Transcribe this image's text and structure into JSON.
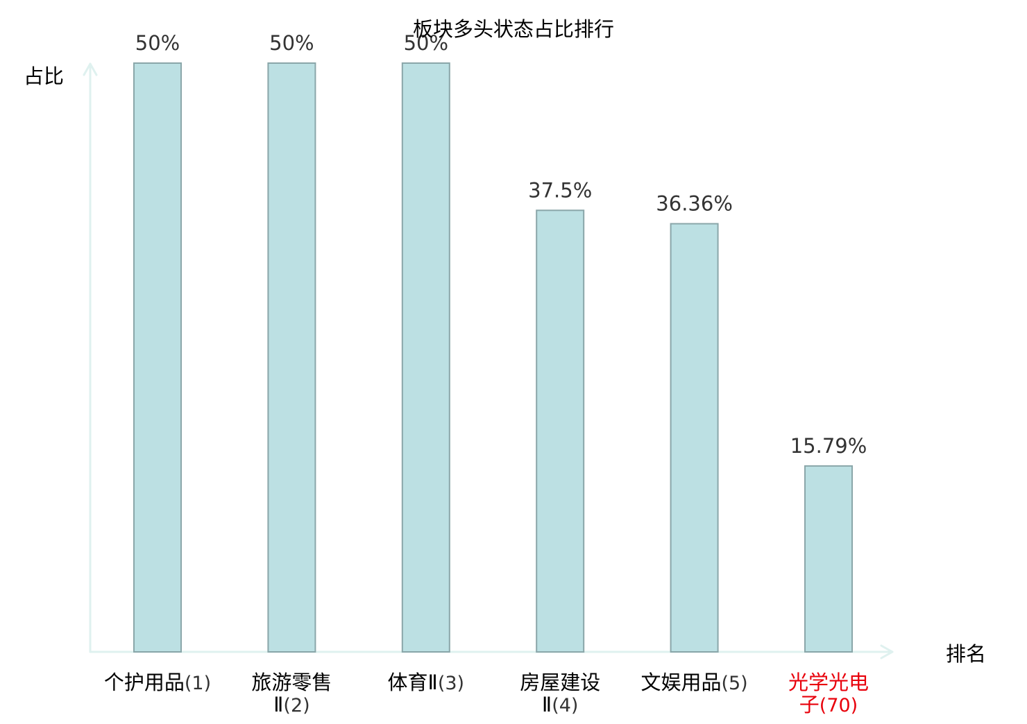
{
  "chart_data": {
    "type": "bar",
    "title": "板块多头状态占比排行",
    "xlabel": "排名",
    "ylabel": "占比",
    "ylim": [
      0,
      50
    ],
    "grid": false,
    "legend": "none",
    "categories": [
      {
        "name_lines": [
          "个护用品"
        ],
        "rank": "(1)",
        "highlight": false
      },
      {
        "name_lines": [
          "旅游零售",
          "Ⅱ"
        ],
        "rank": "(2)",
        "highlight": false
      },
      {
        "name_lines": [
          "体育Ⅱ"
        ],
        "rank": "(3)",
        "highlight": false
      },
      {
        "name_lines": [
          "房屋建设",
          "Ⅱ"
        ],
        "rank": "(4)",
        "highlight": false
      },
      {
        "name_lines": [
          "文娱用品"
        ],
        "rank": "(5)",
        "highlight": false
      },
      {
        "name_lines": [
          "光学光电",
          "子"
        ],
        "rank": "(70)",
        "highlight": true
      }
    ],
    "values": [
      50,
      50,
      50,
      37.5,
      36.36,
      15.79
    ],
    "value_labels": [
      "50%",
      "50%",
      "50%",
      "37.5%",
      "36.36%",
      "15.79%"
    ]
  },
  "colors": {
    "bar_fill": "#bce0e3",
    "bar_stroke": "#8aa6a9",
    "axis": "#dff1ef",
    "text": "#000000",
    "value_text": "#333333",
    "rank_text": "#333333",
    "highlight": "#e8000b"
  }
}
